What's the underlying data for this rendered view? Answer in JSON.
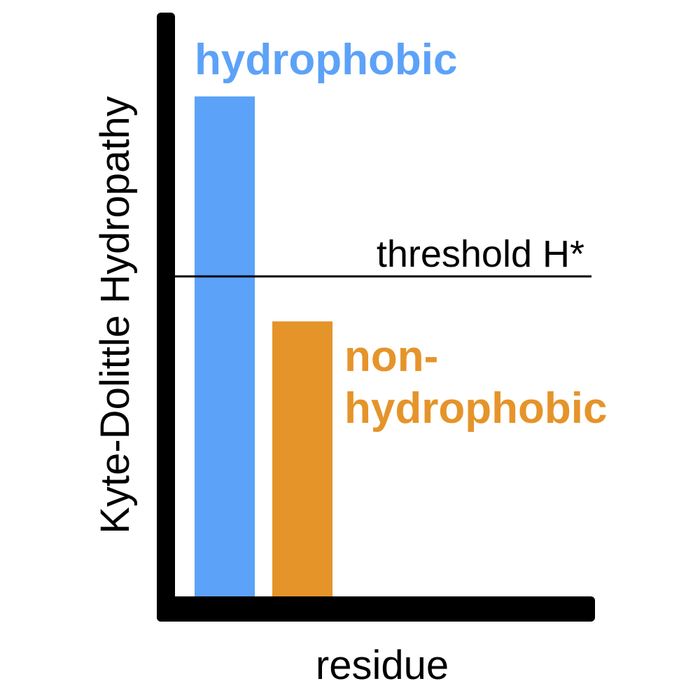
{
  "chart_data": {
    "type": "bar",
    "categories": [
      "hydrophobic",
      "non-hydrophobic"
    ],
    "values": [
      1.0,
      0.55
    ],
    "ylim": [
      0,
      1.05
    ],
    "xlabel": "residue",
    "ylabel": "Kyte-Dolittle Hydropathy",
    "threshold": {
      "label": "threshold H*",
      "value": 0.64
    },
    "bar_labels": [
      {
        "lines": [
          "hydrophobic"
        ]
      },
      {
        "lines": [
          "non-",
          "hydrophobic"
        ]
      }
    ],
    "colors": [
      "#5ca2f8",
      "#e5942a"
    ],
    "axis_color": "#000000",
    "grid": false
  }
}
